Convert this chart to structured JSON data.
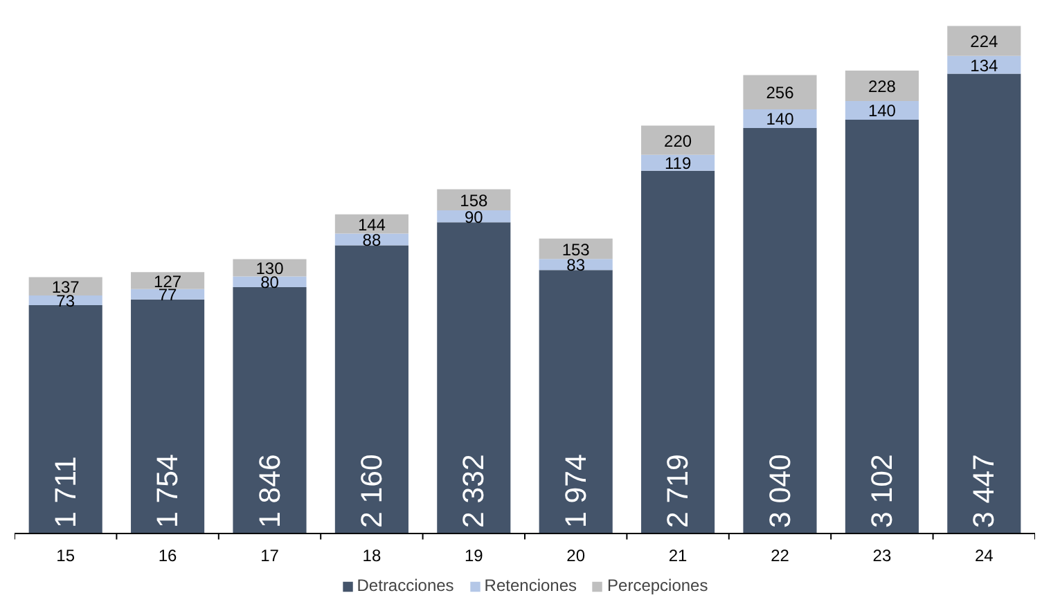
{
  "chart_data": {
    "type": "bar",
    "stacked": true,
    "legend": "bottom",
    "grid": false,
    "tick_labels": "x",
    "categories": [
      "15",
      "16",
      "17",
      "18",
      "19",
      "20",
      "21",
      "22",
      "23",
      "24"
    ],
    "series": [
      {
        "name": "Detracciones",
        "color": "#44546a",
        "values": [
          1711,
          1754,
          1846,
          2160,
          2332,
          1974,
          2719,
          3040,
          3102,
          3447
        ],
        "value_labels": [
          "1 711",
          "1 754",
          "1 846",
          "2 160",
          "2 332",
          "1 974",
          "2 719",
          "3 040",
          "3 102",
          "3 447"
        ]
      },
      {
        "name": "Retenciones",
        "color": "#b4c7e7",
        "values": [
          73,
          77,
          80,
          88,
          90,
          83,
          119,
          140,
          140,
          134
        ],
        "value_labels": [
          "73",
          "77",
          "80",
          "88",
          "90",
          "83",
          "119",
          "140",
          "140",
          "134"
        ]
      },
      {
        "name": "Percepciones",
        "color": "#bfbfbf",
        "values": [
          137,
          127,
          130,
          144,
          158,
          153,
          220,
          256,
          228,
          224
        ],
        "value_labels": [
          "137",
          "127",
          "130",
          "144",
          "158",
          "153",
          "220",
          "256",
          "228",
          "224"
        ]
      }
    ]
  }
}
